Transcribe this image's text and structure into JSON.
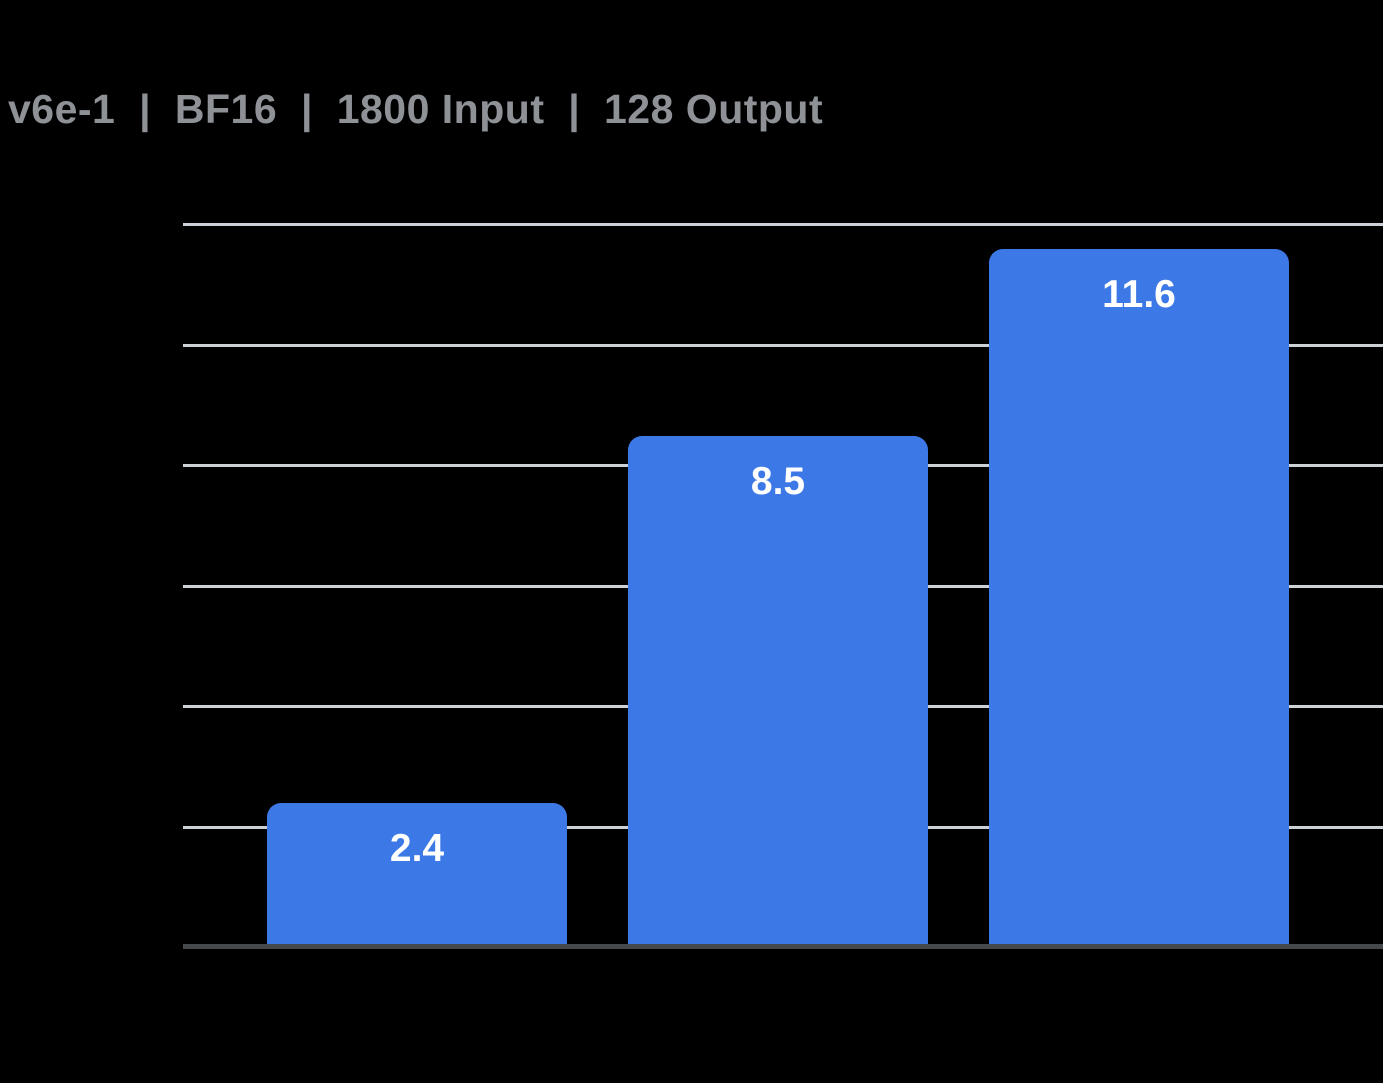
{
  "page": {
    "background": "#000000"
  },
  "header": {
    "title": "v6e-1  |  BF16  |  1800 Input  |  128 Output"
  },
  "chart_data": {
    "type": "bar",
    "title": "v6e-1  |  BF16  |  1800 Input  |  128 Output",
    "categories": [
      "",
      "",
      ""
    ],
    "values": [
      2.4,
      8.5,
      11.6
    ],
    "labels": [
      "2.4",
      "8.5",
      "11.6"
    ],
    "xlabel": "",
    "ylabel": "",
    "ylim": [
      0,
      12
    ],
    "gridline_step": 2,
    "grid": true,
    "legend_position": "none",
    "bar_color": "#3d79e6",
    "label_color": "#ffffff",
    "gridline_color": "#ccd1d7",
    "axis_color": "#46494c",
    "title_color": "#8e9297"
  }
}
